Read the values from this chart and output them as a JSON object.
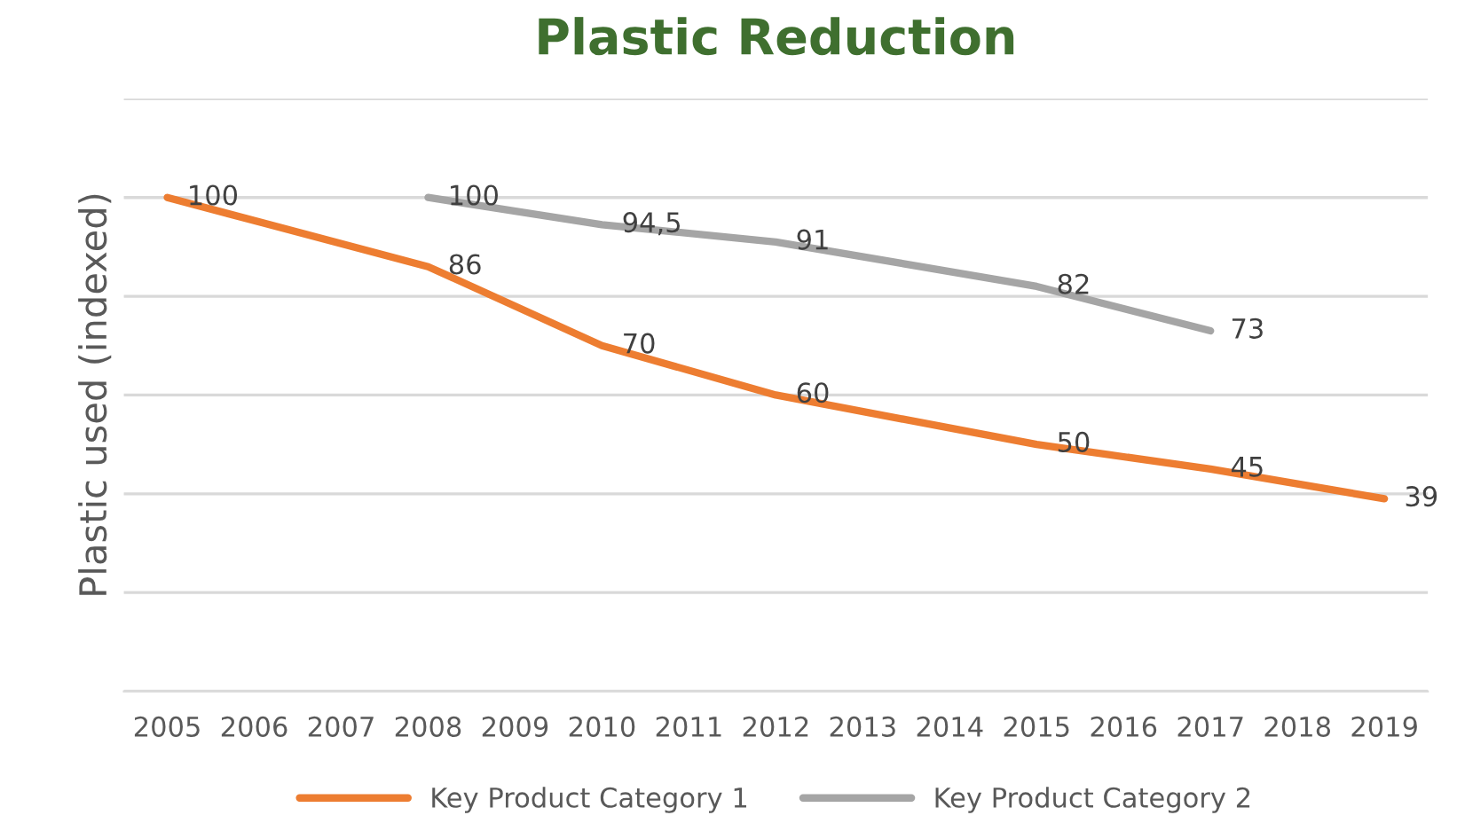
{
  "chart_data": {
    "type": "line",
    "title": "Plastic Reduction",
    "ylabel": "Plastic used (indexed)",
    "categories": [
      "2005",
      "2006",
      "2007",
      "2008",
      "2009",
      "2010",
      "2011",
      "2012",
      "2013",
      "2014",
      "2015",
      "2016",
      "2017",
      "2018",
      "2019"
    ],
    "series": [
      {
        "name": "Key Product Category 1",
        "color": "#ed7d31",
        "values": [
          100,
          null,
          null,
          86,
          null,
          70,
          null,
          60,
          null,
          null,
          50,
          null,
          45,
          null,
          39
        ],
        "value_labels": [
          "100",
          null,
          null,
          "86",
          null,
          "70",
          null,
          "60",
          null,
          null,
          "50",
          null,
          "45",
          null,
          "39"
        ]
      },
      {
        "name": "Key Product Category 2",
        "color": "#a5a5a5",
        "values": [
          null,
          null,
          null,
          100,
          null,
          94.5,
          null,
          91,
          null,
          null,
          82,
          null,
          73,
          null,
          null
        ],
        "value_labels": [
          null,
          null,
          null,
          "100",
          null,
          "94,5",
          null,
          "91",
          null,
          null,
          "82",
          null,
          "73",
          null,
          null
        ]
      }
    ],
    "ylim": [
      0,
      120
    ],
    "yticks": [
      {
        "value": 0,
        "label": null
      },
      {
        "value": 20,
        "label": null
      },
      {
        "value": 40,
        "label": null
      },
      {
        "value": 60,
        "label": null
      },
      {
        "value": 80,
        "label": null
      },
      {
        "value": 100,
        "label": null
      },
      {
        "value": 120,
        "label": null
      }
    ],
    "tick_labels": "x",
    "grid": "y",
    "legend": "bottom",
    "marker": "none",
    "line_style": "solid"
  }
}
